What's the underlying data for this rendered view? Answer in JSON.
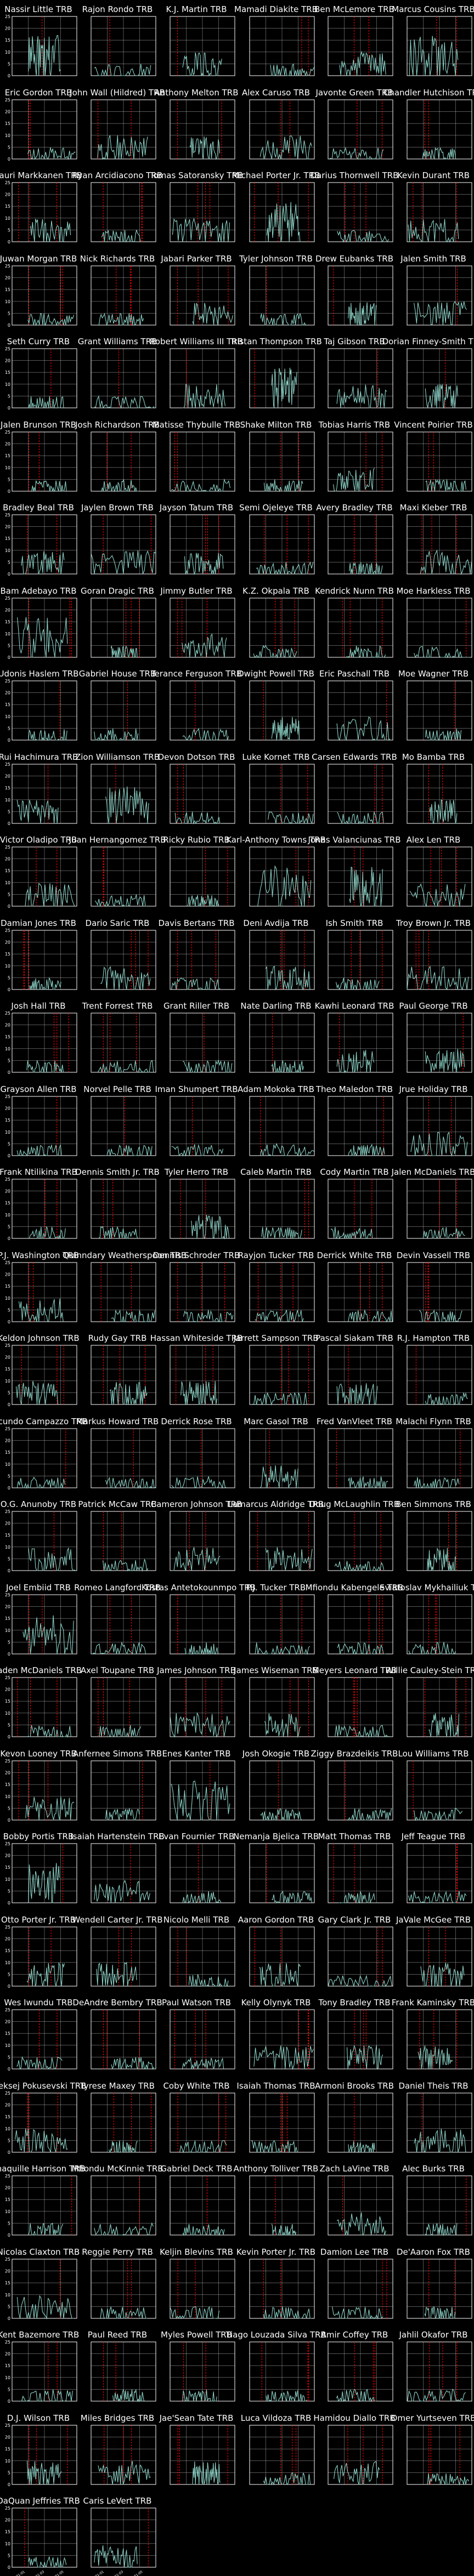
{
  "figure": {
    "background": "#000000",
    "line_color": "#8dd3c7",
    "marker_color": "#ff0000",
    "grid": true
  },
  "chart_data": {
    "type": "line",
    "layout": "small multiples, 6 columns x 29 rows",
    "ylim": [
      0,
      25
    ],
    "y_ticks": [
      "0",
      "5",
      "10",
      "15",
      "20",
      "25"
    ],
    "x_ticks": [
      "2021-01",
      "2021-03",
      "2021-05"
    ],
    "series": [
      {
        "name": "Nassir Little TRB",
        "shape": "high"
      },
      {
        "name": "Rajon Rondo TRB",
        "shape": "low"
      },
      {
        "name": "K.J. Martin TRB",
        "shape": "mid"
      },
      {
        "name": "Mamadi Diakite TRB",
        "shape": "low"
      },
      {
        "name": "Ben McLemore TRB",
        "shape": "mid"
      },
      {
        "name": "Marcus Cousins TRB",
        "shape": "high"
      },
      {
        "name": "Eric Gordon TRB",
        "shape": "low"
      },
      {
        "name": "John Wall (Hildred) TRB",
        "shape": "mid"
      },
      {
        "name": "Anthony Melton TRB",
        "shape": "mid"
      },
      {
        "name": "Alex Caruso TRB",
        "shape": "mid"
      },
      {
        "name": "Javonte Green TRB",
        "shape": "low"
      },
      {
        "name": "Chandler Hutchison TRB",
        "shape": "low"
      },
      {
        "name": "Lauri Markkanen TRB",
        "shape": "mid"
      },
      {
        "name": "Ryan Arcidiacono TRB",
        "shape": "low"
      },
      {
        "name": "Tomas Satoransky TRB",
        "shape": "mid"
      },
      {
        "name": "Michael Porter Jr. TRB",
        "shape": "high"
      },
      {
        "name": "Darius Thornwell TRB",
        "shape": "low"
      },
      {
        "name": "Kevin Durant TRB",
        "shape": "mid"
      },
      {
        "name": "Juwan Morgan TRB",
        "shape": "low"
      },
      {
        "name": "Nick Richards TRB",
        "shape": "low"
      },
      {
        "name": "Jabari Parker TRB",
        "shape": "mid"
      },
      {
        "name": "Tyler Johnson TRB",
        "shape": "low"
      },
      {
        "name": "Drew Eubanks TRB",
        "shape": "mid"
      },
      {
        "name": "Jalen Smith TRB",
        "shape": "mid"
      },
      {
        "name": "Seth Curry TRB",
        "shape": "low"
      },
      {
        "name": "Grant Williams TRB",
        "shape": "low"
      },
      {
        "name": "Robert Williams III TRB",
        "shape": "mid"
      },
      {
        "name": "Tristan Thompson TRB",
        "shape": "high"
      },
      {
        "name": "Taj Gibson TRB",
        "shape": "mid"
      },
      {
        "name": "Dorian Finney-Smith TRB",
        "shape": "mid"
      },
      {
        "name": "Jalen Brunson TRB",
        "shape": "low"
      },
      {
        "name": "Josh Richardson TRB",
        "shape": "low"
      },
      {
        "name": "Matisse Thybulle TRB",
        "shape": "low"
      },
      {
        "name": "Shake Milton TRB",
        "shape": "low"
      },
      {
        "name": "Tobias Harris TRB",
        "shape": "mid"
      },
      {
        "name": "Vincent Poirier TRB",
        "shape": "low"
      },
      {
        "name": "Bradley Beal TRB",
        "shape": "mid"
      },
      {
        "name": "Jaylen Brown TRB",
        "shape": "mid"
      },
      {
        "name": "Jayson Tatum TRB",
        "shape": "mid"
      },
      {
        "name": "Semi Ojeleye TRB",
        "shape": "low"
      },
      {
        "name": "Avery Bradley TRB",
        "shape": "low"
      },
      {
        "name": "Maxi Kleber TRB",
        "shape": "mid"
      },
      {
        "name": "Bam Adebayo TRB",
        "shape": "high"
      },
      {
        "name": "Goran Dragic TRB",
        "shape": "low"
      },
      {
        "name": "Jimmy Butler TRB",
        "shape": "mid"
      },
      {
        "name": "K.Z. Okpala TRB",
        "shape": "low"
      },
      {
        "name": "Kendrick Nunn TRB",
        "shape": "low"
      },
      {
        "name": "Moe Harkless TRB",
        "shape": "low"
      },
      {
        "name": "Udonis Haslem TRB",
        "shape": "low"
      },
      {
        "name": "Gabriel House TRB",
        "shape": "low"
      },
      {
        "name": "Terance Ferguson TRB",
        "shape": "low"
      },
      {
        "name": "Dwight Powell TRB",
        "shape": "mid"
      },
      {
        "name": "Eric Paschall TRB",
        "shape": "mid"
      },
      {
        "name": "Moe Wagner TRB",
        "shape": "low"
      },
      {
        "name": "Rui Hachimura TRB",
        "shape": "mid"
      },
      {
        "name": "Zion Williamson TRB",
        "shape": "high"
      },
      {
        "name": "Devon Dotson TRB",
        "shape": "low"
      },
      {
        "name": "Luke Kornet TRB",
        "shape": "low"
      },
      {
        "name": "Carsen Edwards TRB",
        "shape": "low"
      },
      {
        "name": "Mo Bamba TRB",
        "shape": "mid"
      },
      {
        "name": "Victor Oladipo TRB",
        "shape": "mid"
      },
      {
        "name": "Juan Hernangomez TRB",
        "shape": "low"
      },
      {
        "name": "Ricky Rubio TRB",
        "shape": "low"
      },
      {
        "name": "Karl-Anthony Towns TRB",
        "shape": "high"
      },
      {
        "name": "Jonas Valanciunas TRB",
        "shape": "high"
      },
      {
        "name": "Alex Len TRB",
        "shape": "mid"
      },
      {
        "name": "Damian Jones TRB",
        "shape": "low"
      },
      {
        "name": "Dario Saric TRB",
        "shape": "mid"
      },
      {
        "name": "Davis Bertans TRB",
        "shape": "low"
      },
      {
        "name": "Deni Avdija TRB",
        "shape": "mid"
      },
      {
        "name": "Ish Smith TRB",
        "shape": "low"
      },
      {
        "name": "Troy Brown Jr. TRB",
        "shape": "mid"
      },
      {
        "name": "Josh Hall TRB",
        "shape": "low"
      },
      {
        "name": "Trent Forrest TRB",
        "shape": "low"
      },
      {
        "name": "Grant Riller TRB",
        "shape": "low"
      },
      {
        "name": "Nate Darling TRB",
        "shape": "low"
      },
      {
        "name": "Kawhi Leonard TRB",
        "shape": "mid"
      },
      {
        "name": "Paul George TRB",
        "shape": "mid"
      },
      {
        "name": "Grayson Allen TRB",
        "shape": "low"
      },
      {
        "name": "Norvel Pelle TRB",
        "shape": "low"
      },
      {
        "name": "Iman Shumpert TRB",
        "shape": "low"
      },
      {
        "name": "Adam Mokoka TRB",
        "shape": "low"
      },
      {
        "name": "Theo Maledon TRB",
        "shape": "low"
      },
      {
        "name": "Jrue Holiday TRB",
        "shape": "mid"
      },
      {
        "name": "Frank Ntilikina TRB",
        "shape": "low"
      },
      {
        "name": "Dennis Smith Jr. TRB",
        "shape": "low"
      },
      {
        "name": "Tyler Herro TRB",
        "shape": "mid"
      },
      {
        "name": "Caleb Martin TRB",
        "shape": "low"
      },
      {
        "name": "Cody Martin TRB",
        "shape": "low"
      },
      {
        "name": "Jalen McDaniels TRB",
        "shape": "low"
      },
      {
        "name": "P.J. Washington TRB",
        "shape": "mid"
      },
      {
        "name": "Quinndary Weatherspoon TRB",
        "shape": "low"
      },
      {
        "name": "Dennis Schroder TRB",
        "shape": "low"
      },
      {
        "name": "Rayjon Tucker TRB",
        "shape": "low"
      },
      {
        "name": "Derrick White TRB",
        "shape": "low"
      },
      {
        "name": "Devin Vassell TRB",
        "shape": "low"
      },
      {
        "name": "Keldon Johnson TRB",
        "shape": "mid"
      },
      {
        "name": "Rudy Gay TRB",
        "shape": "mid"
      },
      {
        "name": "Hassan Whiteside TRB",
        "shape": "mid"
      },
      {
        "name": "Jarrett Sampson TRB",
        "shape": "low"
      },
      {
        "name": "Pascal Siakam TRB",
        "shape": "mid"
      },
      {
        "name": "R.J. Hampton TRB",
        "shape": "low"
      },
      {
        "name": "Facundo Campazzo TRB",
        "shape": "low"
      },
      {
        "name": "Markus Howard TRB",
        "shape": "low"
      },
      {
        "name": "Derrick Rose TRB",
        "shape": "low"
      },
      {
        "name": "Marc Gasol TRB",
        "shape": "mid"
      },
      {
        "name": "Fred VanVleet TRB",
        "shape": "low"
      },
      {
        "name": "Malachi Flynn TRB",
        "shape": "low"
      },
      {
        "name": "O.G. Anunoby TRB",
        "shape": "mid"
      },
      {
        "name": "Patrick McCaw TRB",
        "shape": "low"
      },
      {
        "name": "Cameron Johnson TRB",
        "shape": "mid"
      },
      {
        "name": "Lamarcus Aldridge TRB",
        "shape": "mid"
      },
      {
        "name": "Doug McLaughlin TRB",
        "shape": "low"
      },
      {
        "name": "Ben Simmons TRB",
        "shape": "mid"
      },
      {
        "name": "Joel Embiid TRB",
        "shape": "high"
      },
      {
        "name": "Romeo Langford TRB",
        "shape": "low"
      },
      {
        "name": "Kostas Antetokounmpo TRB",
        "shape": "low"
      },
      {
        "name": "P.J. Tucker TRB",
        "shape": "low"
      },
      {
        "name": "Mfiondu Kabengele TRB",
        "shape": "low"
      },
      {
        "name": "Sviatoslav Mykhailiuk TRB",
        "shape": "low"
      },
      {
        "name": "Jaden McDaniels TRB",
        "shape": "low"
      },
      {
        "name": "Axel Toupane TRB",
        "shape": "low"
      },
      {
        "name": "James Johnson TRB",
        "shape": "mid"
      },
      {
        "name": "James Wiseman TRB",
        "shape": "mid"
      },
      {
        "name": "Meyers Leonard TRB",
        "shape": "low"
      },
      {
        "name": "Willie Cauley-Stein TRB",
        "shape": "mid"
      },
      {
        "name": "Kevon Looney TRB",
        "shape": "mid"
      },
      {
        "name": "Anfernee Simons TRB",
        "shape": "low"
      },
      {
        "name": "Enes Kanter TRB",
        "shape": "high"
      },
      {
        "name": "Josh Okogie TRB",
        "shape": "low"
      },
      {
        "name": "Ziggy Brazdeikis TRB",
        "shape": "low"
      },
      {
        "name": "Lou Williams TRB",
        "shape": "low"
      },
      {
        "name": "Bobby Portis TRB",
        "shape": "high"
      },
      {
        "name": "Isaiah Hartenstein TRB",
        "shape": "mid"
      },
      {
        "name": "Evan Fournier TRB",
        "shape": "low"
      },
      {
        "name": "Nemanja Bjelica TRB",
        "shape": "low"
      },
      {
        "name": "Matt Thomas TRB",
        "shape": "low"
      },
      {
        "name": "Jeff Teague TRB",
        "shape": "low"
      },
      {
        "name": "Otto Porter Jr. TRB",
        "shape": "mid"
      },
      {
        "name": "Wendell Carter Jr. TRB",
        "shape": "mid"
      },
      {
        "name": "Nicolo Melli TRB",
        "shape": "low"
      },
      {
        "name": "Aaron Gordon TRB",
        "shape": "mid"
      },
      {
        "name": "Gary Clark Jr. TRB",
        "shape": "low"
      },
      {
        "name": "JaVale McGee TRB",
        "shape": "mid"
      },
      {
        "name": "Wes Iwundu TRB",
        "shape": "low"
      },
      {
        "name": "DeAndre Bembry TRB",
        "shape": "low"
      },
      {
        "name": "Paul Watson TRB",
        "shape": "low"
      },
      {
        "name": "Kelly Olynyk TRB",
        "shape": "mid"
      },
      {
        "name": "Tony Bradley TRB",
        "shape": "mid"
      },
      {
        "name": "Frank Kaminsky TRB",
        "shape": "mid"
      },
      {
        "name": "Aleksej Pokusevski TRB",
        "shape": "mid"
      },
      {
        "name": "Tyrese Maxey TRB",
        "shape": "low"
      },
      {
        "name": "Coby White TRB",
        "shape": "low"
      },
      {
        "name": "Isaiah Thomas TRB",
        "shape": "low"
      },
      {
        "name": "Armoni Brooks TRB",
        "shape": "low"
      },
      {
        "name": "Daniel Theis TRB",
        "shape": "mid"
      },
      {
        "name": "Shaquille Harrison TRB",
        "shape": "low"
      },
      {
        "name": "Mfiondu McKinnie TRB",
        "shape": "low"
      },
      {
        "name": "Gabriel Deck TRB",
        "shape": "low"
      },
      {
        "name": "Anthony Tolliver TRB",
        "shape": "low"
      },
      {
        "name": "Zach LaVine TRB",
        "shape": "mid"
      },
      {
        "name": "Alec Burks TRB",
        "shape": "low"
      },
      {
        "name": "Nicolas Claxton TRB",
        "shape": "mid"
      },
      {
        "name": "Reggie Perry TRB",
        "shape": "low"
      },
      {
        "name": "Keljin Blevins TRB",
        "shape": "low"
      },
      {
        "name": "Kevin Porter Jr. TRB",
        "shape": "low"
      },
      {
        "name": "Damion Lee TRB",
        "shape": "low"
      },
      {
        "name": "De'Aaron Fox TRB",
        "shape": "low"
      },
      {
        "name": "Kent Bazemore TRB",
        "shape": "low"
      },
      {
        "name": "Paul Reed TRB",
        "shape": "low"
      },
      {
        "name": "Myles Powell TRB",
        "shape": "low"
      },
      {
        "name": "Tiago Louzada Silva TRB",
        "shape": "low"
      },
      {
        "name": "Amir Coffey TRB",
        "shape": "low"
      },
      {
        "name": "Jahlil Okafor TRB",
        "shape": "low"
      },
      {
        "name": "D.J. Wilson TRB",
        "shape": "mid"
      },
      {
        "name": "Miles Bridges TRB",
        "shape": "mid"
      },
      {
        "name": "Jae'Sean Tate TRB",
        "shape": "mid"
      },
      {
        "name": "Luca Vildoza TRB",
        "shape": "low"
      },
      {
        "name": "Hamidou Diallo TRB",
        "shape": "mid"
      },
      {
        "name": "Omer Yurtseven TRB",
        "shape": "low"
      },
      {
        "name": "DaQuan Jeffries TRB",
        "shape": "low"
      },
      {
        "name": "Caris LeVert TRB",
        "shape": "mid"
      }
    ]
  }
}
